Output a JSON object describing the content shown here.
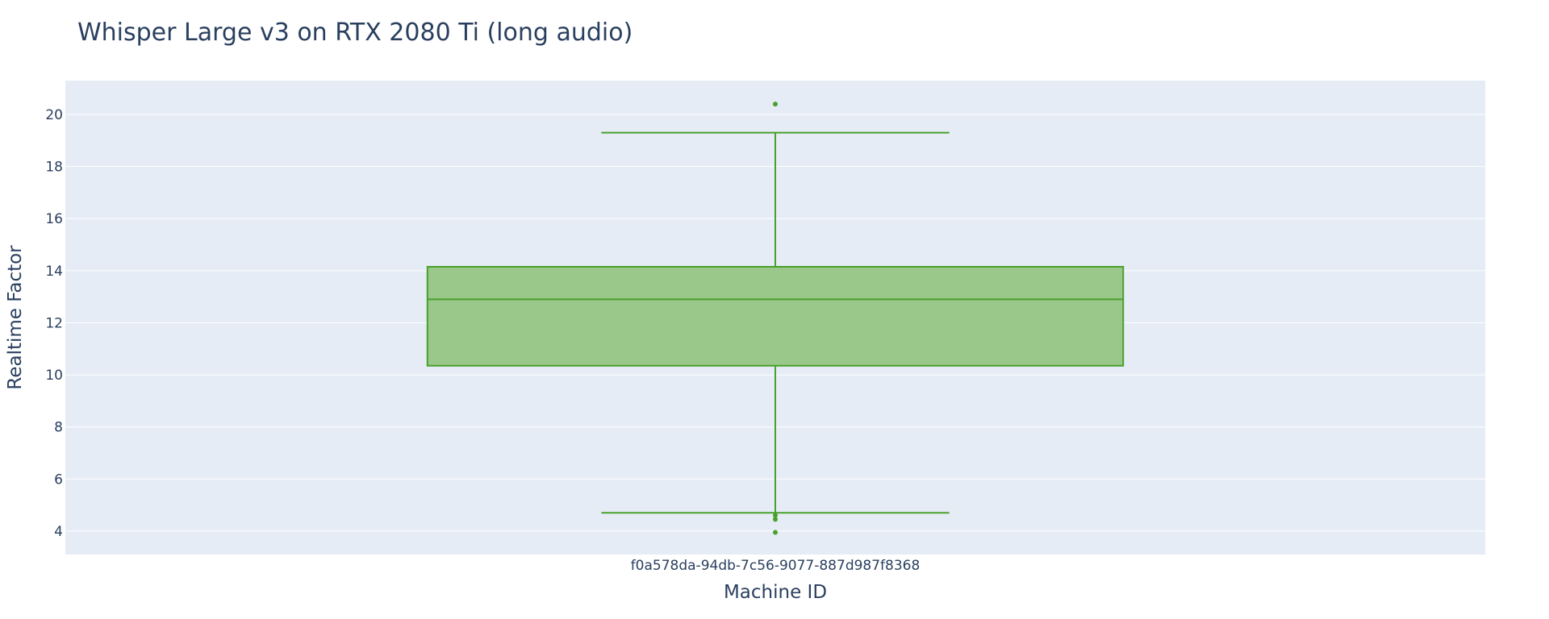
{
  "chart_data": {
    "type": "box",
    "title": "Whisper Large v3 on RTX 2080 Ti (long audio)",
    "xlabel": "Machine ID",
    "ylabel": "Realtime Factor",
    "categories": [
      "f0a578da-94db-7c56-9077-887d987f8368"
    ],
    "ylim": [
      3.1,
      21.3
    ],
    "yticks": [
      4,
      6,
      8,
      10,
      12,
      14,
      16,
      18,
      20
    ],
    "grid": true,
    "legend": "none",
    "series": [
      {
        "category": "f0a578da-94db-7c56-9077-887d987f8368",
        "lower_whisker": 4.7,
        "q1": 10.35,
        "median": 12.9,
        "q3": 14.15,
        "upper_whisker": 19.3,
        "outliers": [
          20.4,
          4.6,
          4.45,
          3.95
        ]
      }
    ],
    "colors": {
      "box_line": "#4aa02c",
      "box_fill": "#9ac88a",
      "plot_bg": "#e5ecf6",
      "grid": "#ffffff",
      "text": "#2a3f5f"
    }
  }
}
